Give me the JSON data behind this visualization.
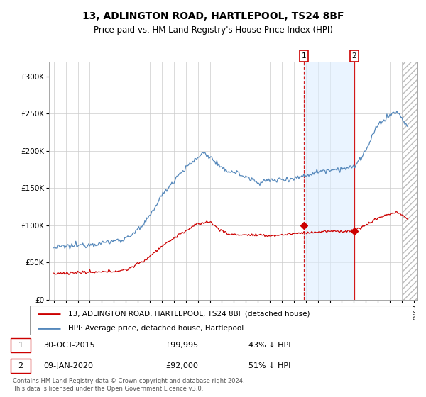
{
  "title": "13, ADLINGTON ROAD, HARTLEPOOL, TS24 8BF",
  "subtitle": "Price paid vs. HM Land Registry's House Price Index (HPI)",
  "legend_line1": "13, ADLINGTON ROAD, HARTLEPOOL, TS24 8BF (detached house)",
  "legend_line2": "HPI: Average price, detached house, Hartlepool",
  "marker1_date": "30-OCT-2015",
  "marker1_price": "£99,995",
  "marker1_hpi": "43% ↓ HPI",
  "marker2_date": "09-JAN-2020",
  "marker2_price": "£92,000",
  "marker2_hpi": "51% ↓ HPI",
  "footer": "Contains HM Land Registry data © Crown copyright and database right 2024.\nThis data is licensed under the Open Government Licence v3.0.",
  "red_color": "#cc0000",
  "blue_color": "#5588bb",
  "marker_box_color": "#cc0000",
  "ylim_min": 0,
  "ylim_max": 320000,
  "marker1_x": 2015.83,
  "marker2_x": 2020.03
}
